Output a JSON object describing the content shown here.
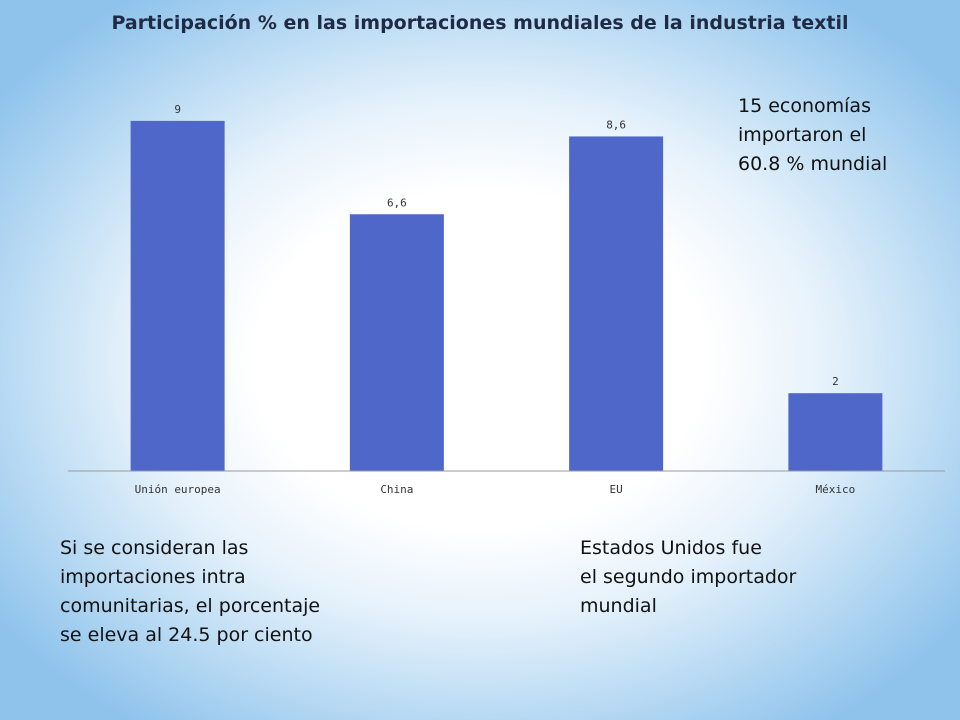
{
  "chart_data": {
    "type": "bar",
    "title": "Participación % en las importaciones mundiales de la industria textil",
    "categories": [
      "Unión europea",
      "China",
      "EU",
      "México"
    ],
    "values": [
      9,
      6.6,
      8.6,
      2
    ],
    "value_labels": [
      "9",
      "6,6",
      "8,6",
      "2"
    ],
    "bar_color": "#4f67c8",
    "grid": false,
    "legend": "none",
    "ylim": [
      0,
      9.1
    ]
  },
  "notes": {
    "top_right": "15 economías\nimportaron el\n60.8 %  mundial",
    "bottom_left": "Si se consideran las\nimportaciones intra\ncomunitarias, el porcentaje\nse eleva al 24.5 por ciento",
    "bottom_right": "Estados Unidos fue\nel segundo importador\nmundial"
  }
}
